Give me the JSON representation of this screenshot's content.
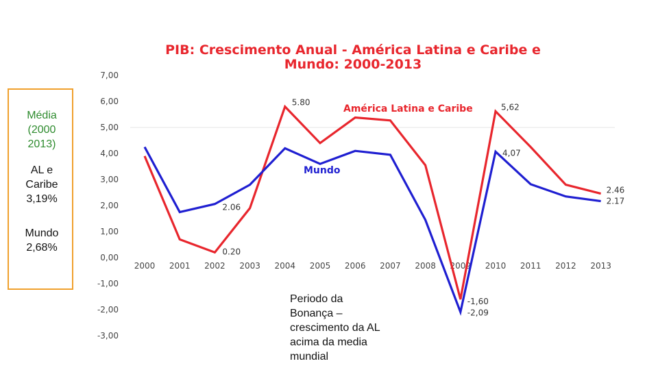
{
  "chart_data": {
    "type": "line",
    "title_lines": [
      "PIB: Crescimento Anual - América Latina e Caribe e",
      "Mundo: 2000-2013"
    ],
    "categories": [
      "2000",
      "2001",
      "2002",
      "2003",
      "2004",
      "2005",
      "2006",
      "2007",
      "2008",
      "2009",
      "2010",
      "2011",
      "2012",
      "2013"
    ],
    "ylim": [
      -3,
      7
    ],
    "yticks": [
      "7,00",
      "6,00",
      "5,00",
      "4,00",
      "3,00",
      "2,00",
      "1,00",
      "0,00",
      "-1,00",
      "-2,00",
      "-3,00"
    ],
    "series": [
      {
        "name": "América Latina e Caribe",
        "color": "#e8262d",
        "values": [
          3.9,
          0.7,
          0.2,
          1.9,
          5.8,
          4.4,
          5.38,
          5.27,
          3.55,
          -1.6,
          5.62,
          4.25,
          2.8,
          2.46
        ]
      },
      {
        "name": "Mundo",
        "color": "#1f1fd1",
        "values": [
          4.25,
          1.75,
          2.06,
          2.8,
          4.2,
          3.6,
          4.1,
          3.95,
          1.45,
          -2.09,
          4.07,
          2.82,
          2.35,
          2.17
        ]
      }
    ],
    "data_labels": [
      {
        "series": 1,
        "index": 2,
        "text": "2.06"
      },
      {
        "series": 0,
        "index": 2,
        "text": "0.20"
      },
      {
        "series": 0,
        "index": 4,
        "text": "5.80"
      },
      {
        "series": 0,
        "index": 10,
        "text": "5,62"
      },
      {
        "series": 1,
        "index": 10,
        "text": "4,07"
      },
      {
        "series": 0,
        "index": 9,
        "text": "-1,60"
      },
      {
        "series": 1,
        "index": 9,
        "text": "-2,09"
      },
      {
        "series": 0,
        "index": 13,
        "text": "2.46"
      },
      {
        "series": 1,
        "index": 13,
        "text": "2.17"
      }
    ]
  },
  "side_box": {
    "heading": "Média\n(2000\n2013)",
    "al": "AL e\nCaribe\n3,19%",
    "world": "Mundo\n2,68%"
  },
  "note": "Periodo da\nBonança –\ncrescimento da AL\nacima da media\nmundial"
}
